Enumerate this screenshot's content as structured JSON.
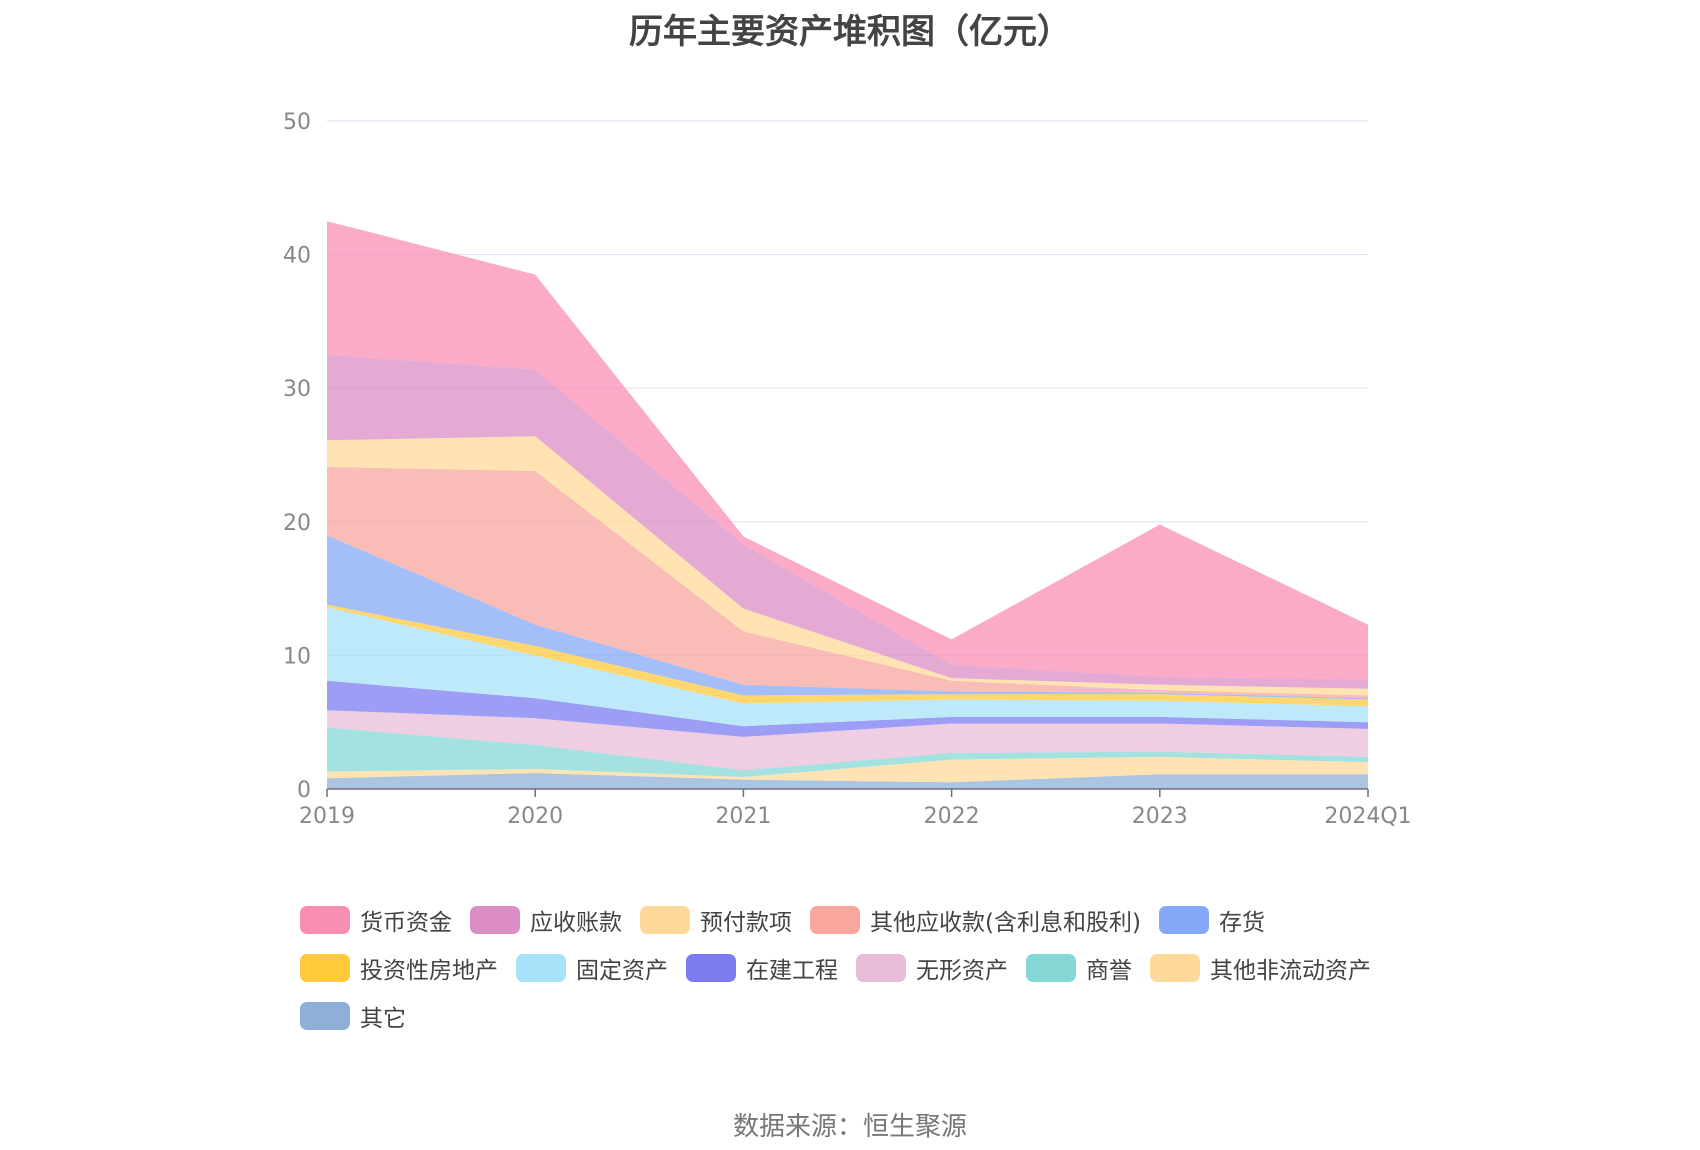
{
  "chart_data": {
    "type": "area",
    "title": "历年主要资产堆积图（亿元）",
    "stacked": true,
    "x": [
      "2019",
      "2020",
      "2021",
      "2022",
      "2023",
      "2024Q1"
    ],
    "yticks": [
      "0",
      "10",
      "20",
      "30",
      "40",
      "50"
    ],
    "ylim": [
      0,
      50
    ],
    "grid": true,
    "legend_position": "bottom",
    "series": [
      {
        "name": "其它",
        "color": "#8eb0d8",
        "values": [
          0.8,
          1.2,
          0.7,
          0.5,
          1.1,
          1.1
        ]
      },
      {
        "name": "其他非流动资产",
        "color": "#ffd99a",
        "values": [
          0.5,
          0.3,
          0.2,
          1.7,
          1.3,
          0.9
        ]
      },
      {
        "name": "商誉",
        "color": "#86d8d6",
        "values": [
          3.3,
          1.8,
          0.5,
          0.5,
          0.4,
          0.4
        ]
      },
      {
        "name": "无形资产",
        "color": "#e9bcda",
        "values": [
          1.3,
          2.0,
          2.5,
          2.2,
          2.1,
          2.1
        ]
      },
      {
        "name": "在建工程",
        "color": "#7b7cf0",
        "values": [
          2.2,
          1.5,
          0.8,
          0.5,
          0.5,
          0.5
        ]
      },
      {
        "name": "固定资产",
        "color": "#a8e2f8",
        "values": [
          5.5,
          3.2,
          1.7,
          1.3,
          1.2,
          1.2
        ]
      },
      {
        "name": "投资性房地产",
        "color": "#ffc93b",
        "values": [
          0.2,
          0.7,
          0.6,
          0.4,
          0.5,
          0.5
        ]
      },
      {
        "name": "存货",
        "color": "#86a8f8",
        "values": [
          5.2,
          1.6,
          0.8,
          0.2,
          0.1,
          0.1
        ]
      },
      {
        "name": "其他应收款(含利息和股利)",
        "color": "#f8a69e",
        "values": [
          5.1,
          11.5,
          4.0,
          0.8,
          0.2,
          0.2
        ]
      },
      {
        "name": "预付款项",
        "color": "#ffd99a",
        "values": [
          2.0,
          2.6,
          1.7,
          0.2,
          0.4,
          0.5
        ]
      },
      {
        "name": "应收账款",
        "color": "#dc8ec4",
        "values": [
          6.4,
          5.0,
          4.8,
          1.0,
          0.6,
          0.7
        ]
      },
      {
        "name": "货币资金",
        "color": "#f98eb4",
        "values": [
          10.0,
          7.1,
          0.6,
          1.9,
          11.4,
          4.1
        ]
      }
    ]
  },
  "legend_order": [
    "货币资金",
    "应收账款",
    "预付款项",
    "其他应收款(含利息和股利)",
    "存货",
    "投资性房地产",
    "固定资产",
    "在建工程",
    "无形资产",
    "商誉",
    "其他非流动资产",
    "其它"
  ],
  "source_text": "数据来源：恒生聚源"
}
